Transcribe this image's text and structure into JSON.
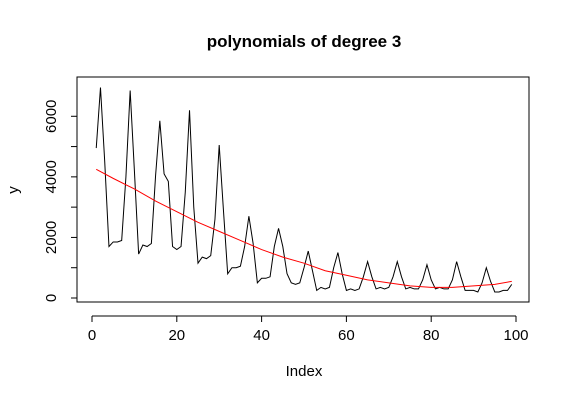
{
  "chart_data": {
    "type": "line",
    "title": "polynomials of degree 3",
    "xlabel": "Index",
    "ylabel": "y",
    "xlim": [
      1,
      99
    ],
    "ylim": [
      0,
      6950
    ],
    "grid": false,
    "legend": "none",
    "x_ticks": [
      0,
      20,
      40,
      60,
      80,
      100
    ],
    "x_tick_labels": [
      "0",
      "20",
      "40",
      "60",
      "80",
      "100"
    ],
    "y_ticks": [
      0,
      1000,
      2000,
      3000,
      4000,
      5000,
      6000
    ],
    "y_tick_labels": [
      "0",
      "",
      "2000",
      "",
      "4000",
      "",
      "6000"
    ],
    "series": [
      {
        "color": "#000000",
        "x": [
          1,
          2,
          3,
          4,
          5,
          6,
          7,
          8,
          9,
          10,
          11,
          12,
          13,
          14,
          15,
          16,
          17,
          18,
          19,
          20,
          21,
          22,
          23,
          24,
          25,
          26,
          27,
          28,
          29,
          30,
          31,
          32,
          33,
          34,
          35,
          36,
          37,
          38,
          39,
          40,
          41,
          42,
          43,
          44,
          45,
          46,
          47,
          48,
          49,
          50,
          51,
          52,
          53,
          54,
          55,
          56,
          57,
          58,
          59,
          60,
          61,
          62,
          63,
          64,
          65,
          66,
          67,
          68,
          69,
          70,
          71,
          72,
          73,
          74,
          75,
          76,
          77,
          78,
          79,
          80,
          81,
          82,
          83,
          84,
          85,
          86,
          87,
          88,
          89,
          90,
          91,
          92,
          93,
          94,
          95,
          96,
          97,
          98,
          99
        ],
        "values": [
          4950,
          6950,
          4500,
          1700,
          1850,
          1850,
          1900,
          4000,
          6850,
          4200,
          1450,
          1750,
          1700,
          1800,
          4050,
          5850,
          4100,
          3850,
          1700,
          1600,
          1700,
          3500,
          6200,
          3000,
          1150,
          1350,
          1300,
          1400,
          2600,
          5050,
          2900,
          800,
          1000,
          1000,
          1050,
          1700,
          2700,
          1800,
          500,
          650,
          650,
          700,
          1700,
          2300,
          1700,
          800,
          500,
          450,
          500,
          1000,
          1550,
          900,
          250,
          350,
          300,
          350,
          1000,
          1500,
          800,
          250,
          300,
          250,
          300,
          700,
          1200,
          700,
          300,
          350,
          300,
          350,
          700,
          1200,
          700,
          300,
          350,
          300,
          300,
          600,
          1100,
          600,
          300,
          350,
          300,
          300,
          600,
          1200,
          700,
          250,
          250,
          250,
          200,
          500,
          1000,
          550,
          200,
          200,
          250,
          250,
          450
        ]
      },
      {
        "color": "#ff0000",
        "x": [
          1,
          5,
          10,
          15,
          20,
          25,
          30,
          35,
          40,
          45,
          50,
          55,
          60,
          65,
          70,
          75,
          80,
          85,
          90,
          95,
          99
        ],
        "values": [
          4250,
          3950,
          3600,
          3200,
          2850,
          2500,
          2200,
          1900,
          1600,
          1350,
          1150,
          900,
          750,
          600,
          500,
          400,
          350,
          350,
          400,
          450,
          550
        ]
      }
    ]
  }
}
